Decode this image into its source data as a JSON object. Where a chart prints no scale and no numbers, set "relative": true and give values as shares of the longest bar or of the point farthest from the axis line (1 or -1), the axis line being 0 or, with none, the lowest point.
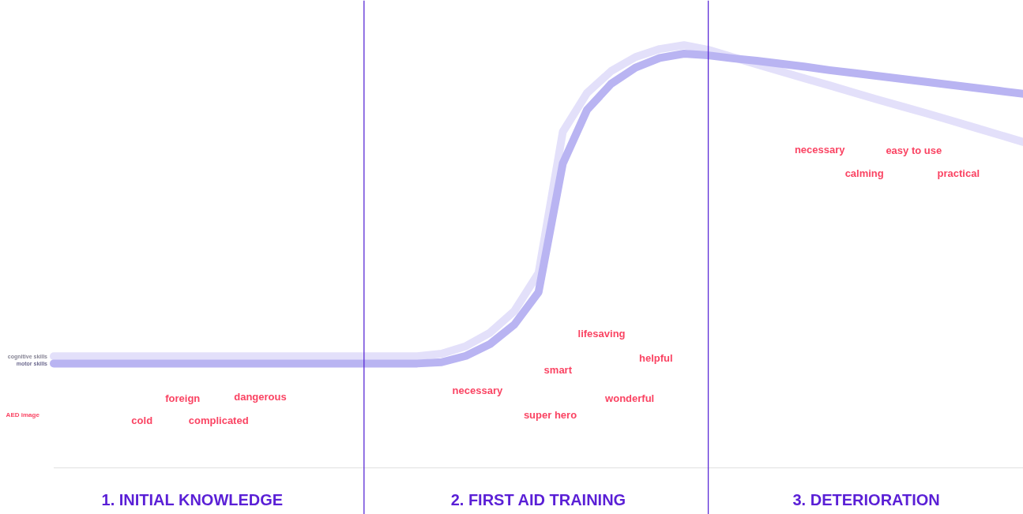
{
  "chart_data": {
    "type": "line",
    "relative": true,
    "line_style": "solid",
    "grid": false,
    "categories": [
      null,
      null,
      null,
      null,
      null,
      null,
      null,
      null,
      null,
      null,
      null,
      null,
      null,
      null,
      null,
      null,
      null,
      null,
      null,
      null,
      null,
      null,
      null,
      null,
      null,
      null,
      null,
      null,
      null,
      null,
      null,
      null,
      null,
      null,
      null,
      null,
      null,
      null,
      null,
      null,
      null
    ],
    "series": [
      {
        "name": "cognitive skills",
        "color": "#e3e0fa",
        "values": [
          0.264,
          0.264,
          0.264,
          0.264,
          0.264,
          0.264,
          0.264,
          0.264,
          0.264,
          0.264,
          0.264,
          0.264,
          0.264,
          0.264,
          0.264,
          0.264,
          0.27,
          0.288,
          0.32,
          0.371,
          0.461,
          0.795,
          0.887,
          0.939,
          0.972,
          0.991,
          1,
          0.989,
          0.972,
          0.955,
          0.938,
          0.921,
          0.905,
          0.888,
          0.871,
          0.855,
          0.839,
          0.822,
          0.805,
          0.788,
          0.771
        ]
      },
      {
        "name": "motor skills",
        "color": "#b9b4f2",
        "values": [
          0.247,
          0.247,
          0.247,
          0.247,
          0.247,
          0.247,
          0.247,
          0.247,
          0.247,
          0.247,
          0.247,
          0.247,
          0.247,
          0.247,
          0.247,
          0.247,
          0.25,
          0.265,
          0.293,
          0.339,
          0.416,
          0.72,
          0.847,
          0.909,
          0.947,
          0.97,
          0.98,
          0.976,
          0.969,
          0.963,
          0.956,
          0.949,
          0.941,
          0.934,
          0.927,
          0.92,
          0.913,
          0.906,
          0.899,
          0.892,
          0.885
        ]
      }
    ],
    "annotations": [
      "AED image",
      "foreign",
      "dangerous",
      "cold",
      "complicated",
      "lifesaving",
      "helpful",
      "smart",
      "necessary",
      "wonderful",
      "super hero",
      "necessary",
      "easy to use",
      "calming",
      "practical",
      "1. INITIAL KNOWLEDGE",
      "2. FIRST AID TRAINING",
      "3. DETERIORATION"
    ]
  }
}
